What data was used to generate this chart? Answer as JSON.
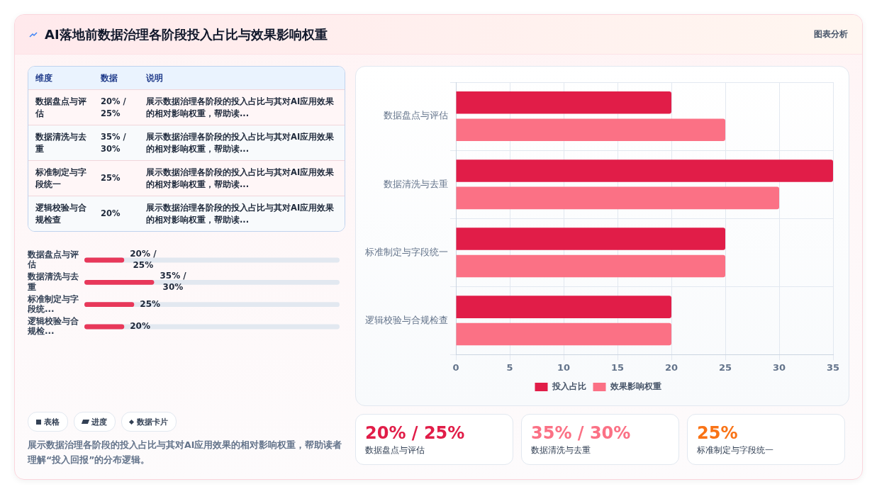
{
  "chart_data": [
    {
      "type": "other",
      "title": "AI落地前数据治理各阶段投入占比与效果影响权重",
      "annotations": [
        "图表分析",
        "维度",
        "数据",
        "说明",
        "数据盘点与评估",
        "20% / 25%",
        "展示数据治理各阶段的投入占比与其对AI应用效果的相对影响权重，帮助读...",
        "数据清洗与去重",
        "35% / 30%",
        "展示数据治理各阶段的投入占比与其对AI应用效果的相对影响权重，帮助读...",
        "标准制定与字段统一",
        "25%",
        "展示数据治理各阶段的投入占比与其对AI应用效果的相对影响权重，帮助读...",
        "逻辑校验与合规检查",
        "20%",
        "展示数据治理各阶段的投入占比与其对AI应用效果的相对影响权重，帮助读...",
        "表格",
        "进度",
        "数据卡片",
        "展示数据治理各阶段的投入占比与其对AI应用效果的相对影响权重，帮助读者理解“投入回报”的分布逻辑。"
      ]
    },
    {
      "type": "bar",
      "orientation": "horizontal",
      "categories": [
        "数据盘点与评估",
        "数据清洗与去重",
        "标准制定与字段统...",
        "逻辑校验与合规检..."
      ],
      "series": [
        {
          "color": "#e8385a",
          "values": [
            20,
            35,
            25,
            20
          ],
          "value_labels": [
            "20% / 25%",
            "35% / 30%",
            "25%",
            "20%"
          ]
        }
      ]
    },
    {
      "type": "bar",
      "orientation": "horizontal",
      "categories": [
        "数据盘点与评估",
        "数据清洗与去重",
        "标准制定与字段统一",
        "逻辑校验与合规检查"
      ],
      "series": [
        {
          "name": "投入占比",
          "color": "#e11d48",
          "values": [
            20,
            35,
            25,
            20
          ]
        },
        {
          "name": "效果影响权重",
          "color": "#fb7185",
          "values": [
            25,
            30,
            25,
            20
          ]
        }
      ],
      "xlim": [
        0,
        35
      ],
      "xticks": [
        0,
        5,
        10,
        15,
        20,
        25,
        30,
        35
      ],
      "grid": true,
      "legend": "bottom"
    },
    {
      "type": "other",
      "annotations": [
        "20% / 25%",
        "数据盘点与评估",
        "35% / 30%",
        "数据清洗与去重",
        "25%",
        "标准制定与字段统一"
      ],
      "colors": [
        "#e11d48",
        "#fb7185",
        "#f97316"
      ]
    }
  ]
}
